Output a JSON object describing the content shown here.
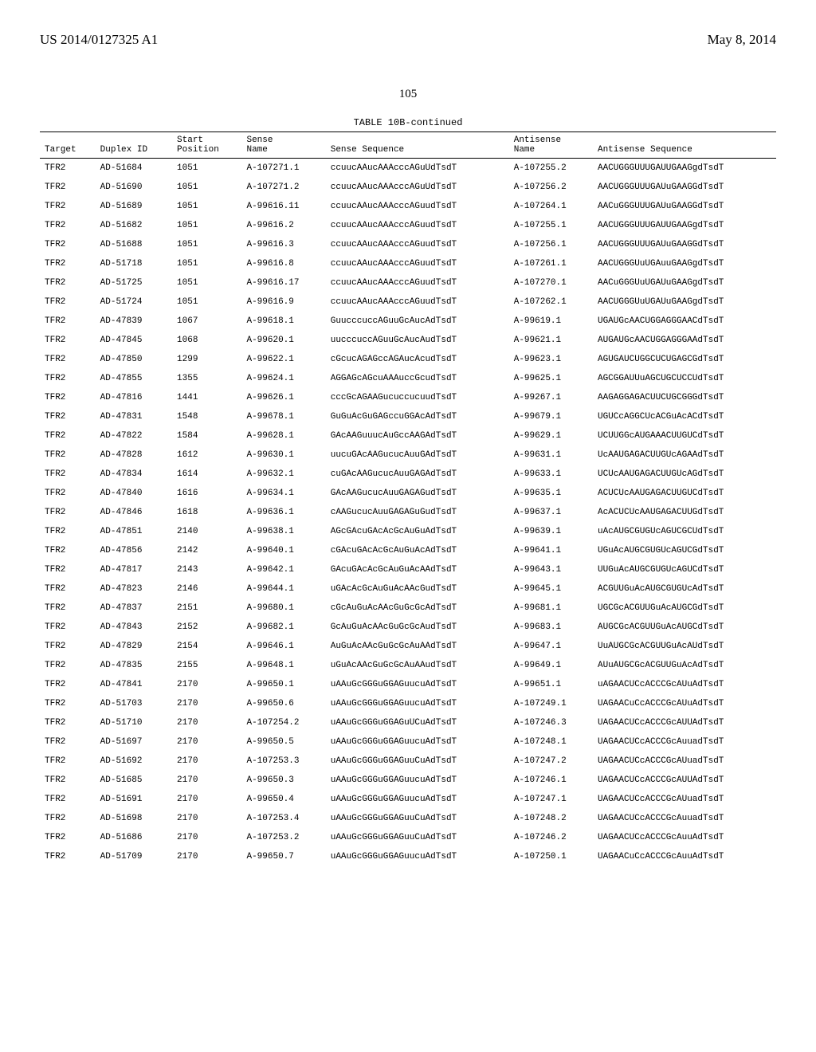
{
  "header": {
    "pub_number": "US 2014/0127325 A1",
    "pub_date": "May 8, 2014"
  },
  "page_number": "105",
  "table_title": "TABLE 10B-continued",
  "columns": {
    "target": "Target",
    "duplex_id": "Duplex ID",
    "start_position": "Start\nPosition",
    "sense_name": "Sense\nName",
    "sense_sequence": "Sense Sequence",
    "antisense_name": "Antisense\nName",
    "antisense_sequence": "Antisense Sequence"
  },
  "rows": [
    {
      "target": "TFR2",
      "duplex_id": "AD-51684",
      "start": "1051",
      "sense_name": "A-107271.1",
      "sense_seq": "ccuucAAucAAAcccAGuUdTsdT",
      "anti_name": "A-107255.2",
      "anti_seq": "AACUGGGUUUGAUUGAAGgdTsdT"
    },
    {
      "target": "TFR2",
      "duplex_id": "AD-51690",
      "start": "1051",
      "sense_name": "A-107271.2",
      "sense_seq": "ccuucAAucAAAcccAGuUdTsdT",
      "anti_name": "A-107256.2",
      "anti_seq": "AACUGGGUUUGAUuGAAGGdTsdT"
    },
    {
      "target": "TFR2",
      "duplex_id": "AD-51689",
      "start": "1051",
      "sense_name": "A-99616.11",
      "sense_seq": "ccuucAAucAAAcccAGuudTsdT",
      "anti_name": "A-107264.1",
      "anti_seq": "AACuGGGUUUGAUuGAAGGdTsdT"
    },
    {
      "target": "TFR2",
      "duplex_id": "AD-51682",
      "start": "1051",
      "sense_name": "A-99616.2",
      "sense_seq": "ccuucAAucAAAcccAGuudTsdT",
      "anti_name": "A-107255.1",
      "anti_seq": "AACUGGGUUUGAUUGAAGgdTsdT"
    },
    {
      "target": "TFR2",
      "duplex_id": "AD-51688",
      "start": "1051",
      "sense_name": "A-99616.3",
      "sense_seq": "ccuucAAucAAAcccAGuudTsdT",
      "anti_name": "A-107256.1",
      "anti_seq": "AACUGGGUUUGAUuGAAGGdTsdT"
    },
    {
      "target": "TFR2",
      "duplex_id": "AD-51718",
      "start": "1051",
      "sense_name": "A-99616.8",
      "sense_seq": "ccuucAAucAAAcccAGuudTsdT",
      "anti_name": "A-107261.1",
      "anti_seq": "AACUGGGUuUGAuuGAAGgdTsdT"
    },
    {
      "target": "TFR2",
      "duplex_id": "AD-51725",
      "start": "1051",
      "sense_name": "A-99616.17",
      "sense_seq": "ccuucAAucAAAcccAGuudTsdT",
      "anti_name": "A-107270.1",
      "anti_seq": "AACuGGGUuUGAUuGAAGgdTsdT"
    },
    {
      "target": "TFR2",
      "duplex_id": "AD-51724",
      "start": "1051",
      "sense_name": "A-99616.9",
      "sense_seq": "ccuucAAucAAAcccAGuudTsdT",
      "anti_name": "A-107262.1",
      "anti_seq": "AACUGGGUuUGAUuGAAGgdTsdT"
    },
    {
      "target": "TFR2",
      "duplex_id": "AD-47839",
      "start": "1067",
      "sense_name": "A-99618.1",
      "sense_seq": "GuucccuccAGuuGcAucAdTsdT",
      "anti_name": "A-99619.1",
      "anti_seq": "UGAUGcAACUGGAGGGAACdTsdT"
    },
    {
      "target": "TFR2",
      "duplex_id": "AD-47845",
      "start": "1068",
      "sense_name": "A-99620.1",
      "sense_seq": "uucccuccAGuuGcAucAudTsdT",
      "anti_name": "A-99621.1",
      "anti_seq": "AUGAUGcAACUGGAGGGAAdTsdT"
    },
    {
      "target": "TFR2",
      "duplex_id": "AD-47850",
      "start": "1299",
      "sense_name": "A-99622.1",
      "sense_seq": "cGcucAGAGccAGAucAcudTsdT",
      "anti_name": "A-99623.1",
      "anti_seq": "AGUGAUCUGGCUCUGAGCGdTsdT"
    },
    {
      "target": "TFR2",
      "duplex_id": "AD-47855",
      "start": "1355",
      "sense_name": "A-99624.1",
      "sense_seq": "AGGAGcAGcuAAAuccGcudTsdT",
      "anti_name": "A-99625.1",
      "anti_seq": "AGCGGAUUuAGCUGCUCCUdTsdT"
    },
    {
      "target": "TFR2",
      "duplex_id": "AD-47816",
      "start": "1441",
      "sense_name": "A-99626.1",
      "sense_seq": "cccGcAGAAGucuccucuudTsdT",
      "anti_name": "A-99267.1",
      "anti_seq": "AAGAGGAGACUUCUGCGGGdTsdT"
    },
    {
      "target": "TFR2",
      "duplex_id": "AD-47831",
      "start": "1548",
      "sense_name": "A-99678.1",
      "sense_seq": "GuGuAcGuGAGccuGGAcAdTsdT",
      "anti_name": "A-99679.1",
      "anti_seq": "UGUCcAGGCUcACGuAcACdTsdT"
    },
    {
      "target": "TFR2",
      "duplex_id": "AD-47822",
      "start": "1584",
      "sense_name": "A-99628.1",
      "sense_seq": "GAcAAGuuucAuGccAAGAdTsdT",
      "anti_name": "A-99629.1",
      "anti_seq": "UCUUGGcAUGAAACUUGUCdTsdT"
    },
    {
      "target": "TFR2",
      "duplex_id": "AD-47828",
      "start": "1612",
      "sense_name": "A-99630.1",
      "sense_seq": "uucuGAcAAGucucAuuGAdTsdT",
      "anti_name": "A-99631.1",
      "anti_seq": "UcAAUGAGACUUGUcAGAAdTsdT"
    },
    {
      "target": "TFR2",
      "duplex_id": "AD-47834",
      "start": "1614",
      "sense_name": "A-99632.1",
      "sense_seq": "cuGAcAAGucucAuuGAGAdTsdT",
      "anti_name": "A-99633.1",
      "anti_seq": "UCUcAAUGAGACUUGUcAGdTsdT"
    },
    {
      "target": "TFR2",
      "duplex_id": "AD-47840",
      "start": "1616",
      "sense_name": "A-99634.1",
      "sense_seq": "GAcAAGucucAuuGAGAGudTsdT",
      "anti_name": "A-99635.1",
      "anti_seq": "ACUCUcAAUGAGACUUGUCdTsdT"
    },
    {
      "target": "TFR2",
      "duplex_id": "AD-47846",
      "start": "1618",
      "sense_name": "A-99636.1",
      "sense_seq": "cAAGucucAuuGAGAGuGudTsdT",
      "anti_name": "A-99637.1",
      "anti_seq": "AcACUCUcAAUGAGACUUGdTsdT"
    },
    {
      "target": "TFR2",
      "duplex_id": "AD-47851",
      "start": "2140",
      "sense_name": "A-99638.1",
      "sense_seq": "AGcGAcuGAcAcGcAuGuAdTsdT",
      "anti_name": "A-99639.1",
      "anti_seq": "uAcAUGCGUGUcAGUCGCUdTsdT"
    },
    {
      "target": "TFR2",
      "duplex_id": "AD-47856",
      "start": "2142",
      "sense_name": "A-99640.1",
      "sense_seq": "cGAcuGAcAcGcAuGuAcAdTsdT",
      "anti_name": "A-99641.1",
      "anti_seq": "UGuAcAUGCGUGUcAGUCGdTsdT"
    },
    {
      "target": "TFR2",
      "duplex_id": "AD-47817",
      "start": "2143",
      "sense_name": "A-99642.1",
      "sense_seq": "GAcuGAcAcGcAuGuAcAAdTsdT",
      "anti_name": "A-99643.1",
      "anti_seq": "UUGuAcAUGCGUGUcAGUCdTsdT"
    },
    {
      "target": "TFR2",
      "duplex_id": "AD-47823",
      "start": "2146",
      "sense_name": "A-99644.1",
      "sense_seq": "uGAcAcGcAuGuAcAAcGudTsdT",
      "anti_name": "A-99645.1",
      "anti_seq": "ACGUUGuAcAUGCGUGUcAdTsdT"
    },
    {
      "target": "TFR2",
      "duplex_id": "AD-47837",
      "start": "2151",
      "sense_name": "A-99680.1",
      "sense_seq": "cGcAuGuAcAAcGuGcGcAdTsdT",
      "anti_name": "A-99681.1",
      "anti_seq": "UGCGcACGUUGuAcAUGCGdTsdT"
    },
    {
      "target": "TFR2",
      "duplex_id": "AD-47843",
      "start": "2152",
      "sense_name": "A-99682.1",
      "sense_seq": "GcAuGuAcAAcGuGcGcAudTsdT",
      "anti_name": "A-99683.1",
      "anti_seq": "AUGCGcACGUUGuAcAUGCdTsdT"
    },
    {
      "target": "TFR2",
      "duplex_id": "AD-47829",
      "start": "2154",
      "sense_name": "A-99646.1",
      "sense_seq": "AuGuAcAAcGuGcGcAuAAdTsdT",
      "anti_name": "A-99647.1",
      "anti_seq": "UuAUGCGcACGUUGuAcAUdTsdT"
    },
    {
      "target": "TFR2",
      "duplex_id": "AD-47835",
      "start": "2155",
      "sense_name": "A-99648.1",
      "sense_seq": "uGuAcAAcGuGcGcAuAAudTsdT",
      "anti_name": "A-99649.1",
      "anti_seq": "AUuAUGCGcACGUUGuAcAdTsdT"
    },
    {
      "target": "TFR2",
      "duplex_id": "AD-47841",
      "start": "2170",
      "sense_name": "A-99650.1",
      "sense_seq": "uAAuGcGGGuGGAGuucuAdTsdT",
      "anti_name": "A-99651.1",
      "anti_seq": "uAGAACUCcACCCGcAUuAdTsdT"
    },
    {
      "target": "TFR2",
      "duplex_id": "AD-51703",
      "start": "2170",
      "sense_name": "A-99650.6",
      "sense_seq": "uAAuGcGGGuGGAGuucuAdTsdT",
      "anti_name": "A-107249.1",
      "anti_seq": "UAGAACuCcACCCGcAUuAdTsdT"
    },
    {
      "target": "TFR2",
      "duplex_id": "AD-51710",
      "start": "2170",
      "sense_name": "A-107254.2",
      "sense_seq": "uAAuGcGGGuGGAGuUCuAdTsdT",
      "anti_name": "A-107246.3",
      "anti_seq": "UAGAACUCcACCCGcAUUAdTsdT"
    },
    {
      "target": "TFR2",
      "duplex_id": "AD-51697",
      "start": "2170",
      "sense_name": "A-99650.5",
      "sense_seq": "uAAuGcGGGuGGAGuucuAdTsdT",
      "anti_name": "A-107248.1",
      "anti_seq": "UAGAACUCcACCCGcAuuadTsdT"
    },
    {
      "target": "TFR2",
      "duplex_id": "AD-51692",
      "start": "2170",
      "sense_name": "A-107253.3",
      "sense_seq": "uAAuGcGGGuGGAGuuCuAdTsdT",
      "anti_name": "A-107247.2",
      "anti_seq": "UAGAACUCcACCCGcAUuadTsdT"
    },
    {
      "target": "TFR2",
      "duplex_id": "AD-51685",
      "start": "2170",
      "sense_name": "A-99650.3",
      "sense_seq": "uAAuGcGGGuGGAGuucuAdTsdT",
      "anti_name": "A-107246.1",
      "anti_seq": "UAGAACUCcACCCGcAUUAdTsdT"
    },
    {
      "target": "TFR2",
      "duplex_id": "AD-51691",
      "start": "2170",
      "sense_name": "A-99650.4",
      "sense_seq": "uAAuGcGGGuGGAGuucuAdTsdT",
      "anti_name": "A-107247.1",
      "anti_seq": "UAGAACUCcACCCGcAUuadTsdT"
    },
    {
      "target": "TFR2",
      "duplex_id": "AD-51698",
      "start": "2170",
      "sense_name": "A-107253.4",
      "sense_seq": "uAAuGcGGGuGGAGuuCuAdTsdT",
      "anti_name": "A-107248.2",
      "anti_seq": "UAGAACUCcACCCGcAuuadTsdT"
    },
    {
      "target": "TFR2",
      "duplex_id": "AD-51686",
      "start": "2170",
      "sense_name": "A-107253.2",
      "sense_seq": "uAAuGcGGGuGGAGuuCuAdTsdT",
      "anti_name": "A-107246.2",
      "anti_seq": "UAGAACUCcACCCGcAuuAdTsdT"
    },
    {
      "target": "TFR2",
      "duplex_id": "AD-51709",
      "start": "2170",
      "sense_name": "A-99650.7",
      "sense_seq": "uAAuGcGGGuGGAGuucuAdTsdT",
      "anti_name": "A-107250.1",
      "anti_seq": "UAGAACuCcACCCGcAuuAdTsdT"
    }
  ]
}
